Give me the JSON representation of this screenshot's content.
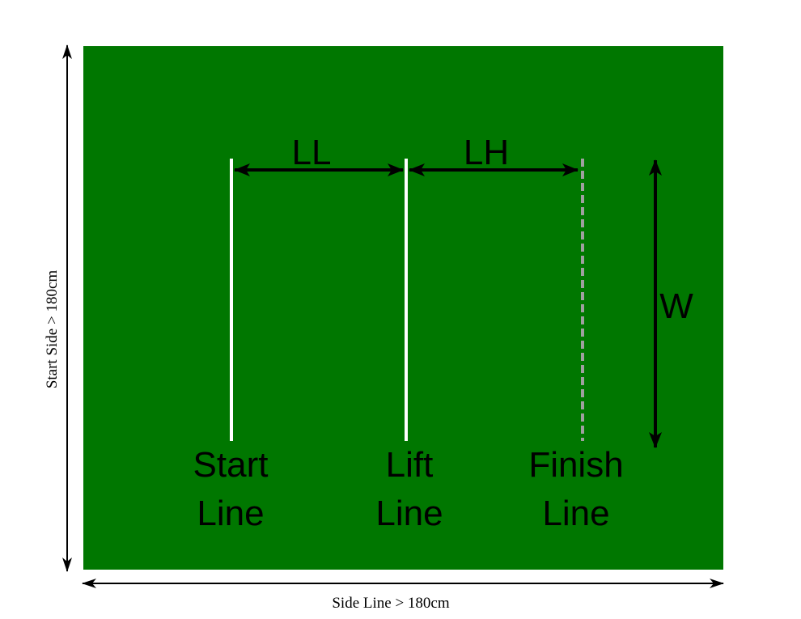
{
  "field": {
    "color": "#007700",
    "line_color": "#ffffff",
    "finish_line_color": "#a0a0a0"
  },
  "lines": {
    "start": {
      "label_line1": "Start",
      "label_line2": "Line"
    },
    "lift": {
      "label_line1": "Lift",
      "label_line2": "Line"
    },
    "finish": {
      "label_line1": "Finish",
      "label_line2": "Line",
      "style": "dashed"
    }
  },
  "dimensions": {
    "ll": "LL",
    "lh": "LH",
    "w": "W",
    "start_side": "Start Side > 180cm",
    "side_line": "Side Line > 180cm"
  }
}
